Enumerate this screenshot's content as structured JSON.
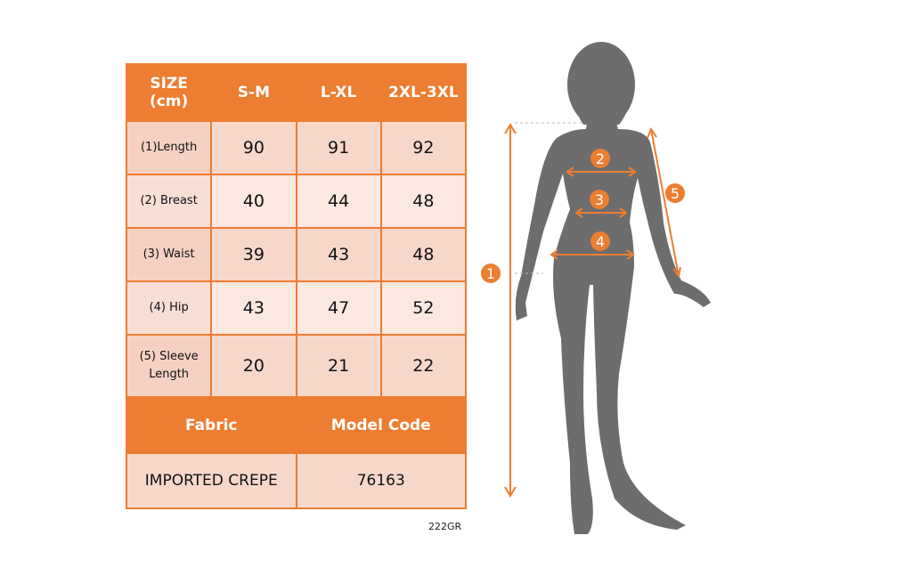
{
  "table": {
    "header": [
      "SIZE\n(cm)",
      "S-M",
      "L-XL",
      "2XL-3XL"
    ],
    "header_line1": "SIZE",
    "header_line2": "(cm)",
    "rows": [
      {
        "label": "(1)Length",
        "values": [
          "90",
          "91",
          "92"
        ]
      },
      {
        "label": "(2) Breast",
        "values": [
          "40",
          "44",
          "48"
        ]
      },
      {
        "label": "(3) Waist",
        "values": [
          "39",
          "43",
          "48"
        ]
      },
      {
        "label": "(4) Hip",
        "values": [
          "43",
          "47",
          "52"
        ]
      },
      {
        "label_line1": "(5) Sleeve",
        "label_line2": "Length",
        "values": [
          "20",
          "21",
          "22"
        ]
      }
    ],
    "footer_headers": [
      "Fabric",
      "Model Code"
    ],
    "footer_values": [
      "IMPORTED CREPE",
      "76163"
    ]
  },
  "code_label": "222GR",
  "figure": {
    "markers": [
      "1",
      "2",
      "3",
      "4",
      "5"
    ]
  },
  "colors": {
    "accent": "#ed7d31",
    "silhouette": "#6d6d6d",
    "row_dark": "#f8d7cb",
    "row_light": "#fbe8e1"
  }
}
